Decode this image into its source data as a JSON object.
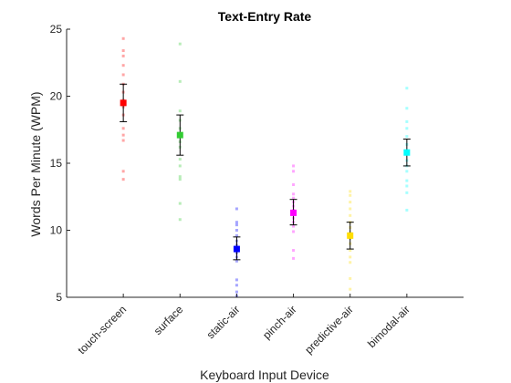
{
  "chart_data": {
    "type": "scatter",
    "title": "Text-Entry Rate",
    "xlabel": "Keyboard Input Device",
    "ylabel": "Words Per Minute (WPM)",
    "ylim": [
      5,
      25
    ],
    "yticks": [
      "5",
      "10",
      "15",
      "20",
      "25"
    ],
    "grid": false,
    "categories": [
      "touch-screen",
      "surface",
      "static-air",
      "pinch-air",
      "predictive-air",
      "bimodal-air"
    ],
    "series": [
      {
        "category": "touch-screen",
        "color": "#ff0000",
        "mean": 19.5,
        "err_low": 18.1,
        "err_high": 20.9,
        "points": [
          24.3,
          23.4,
          23.0,
          22.3,
          21.6,
          20.9,
          20.3,
          19.7,
          19.2,
          18.6,
          17.6,
          17.1,
          16.7,
          14.4,
          13.8
        ]
      },
      {
        "category": "surface",
        "color": "#33cc33",
        "mean": 17.1,
        "err_low": 15.6,
        "err_high": 18.6,
        "points": [
          23.9,
          21.1,
          18.9,
          18.2,
          17.6,
          16.6,
          16.2,
          15.3,
          14.8,
          14.0,
          13.8,
          12.0,
          10.8
        ]
      },
      {
        "category": "static-air",
        "color": "#0000ff",
        "mean": 8.6,
        "err_low": 7.8,
        "err_high": 9.5,
        "points": [
          11.6,
          10.6,
          10.4,
          10.0,
          9.6,
          9.2,
          8.9,
          8.6,
          8.3,
          8.0,
          7.7,
          6.3,
          5.9,
          5.4,
          5.1
        ]
      },
      {
        "category": "pinch-air",
        "color": "#ff00ff",
        "mean": 11.3,
        "err_low": 10.4,
        "err_high": 12.3,
        "points": [
          14.8,
          14.4,
          13.4,
          12.7,
          12.4,
          12.1,
          11.8,
          11.5,
          11.2,
          10.9,
          10.6,
          10.3,
          9.9,
          8.5,
          7.9
        ]
      },
      {
        "category": "predictive-air",
        "color": "#ffdd00",
        "mean": 9.6,
        "err_low": 8.6,
        "err_high": 10.6,
        "points": [
          12.9,
          12.6,
          12.1,
          11.6,
          11.1,
          10.6,
          10.2,
          9.8,
          9.4,
          9.0,
          8.5,
          8.0,
          7.6,
          6.4,
          5.6
        ]
      },
      {
        "category": "bimodal-air",
        "color": "#00ffff",
        "mean": 15.8,
        "err_low": 14.8,
        "err_high": 16.8,
        "points": [
          20.6,
          19.1,
          18.1,
          17.6,
          17.0,
          16.4,
          15.9,
          15.2,
          14.8,
          14.4,
          13.7,
          13.3,
          12.8,
          11.5
        ]
      }
    ]
  }
}
